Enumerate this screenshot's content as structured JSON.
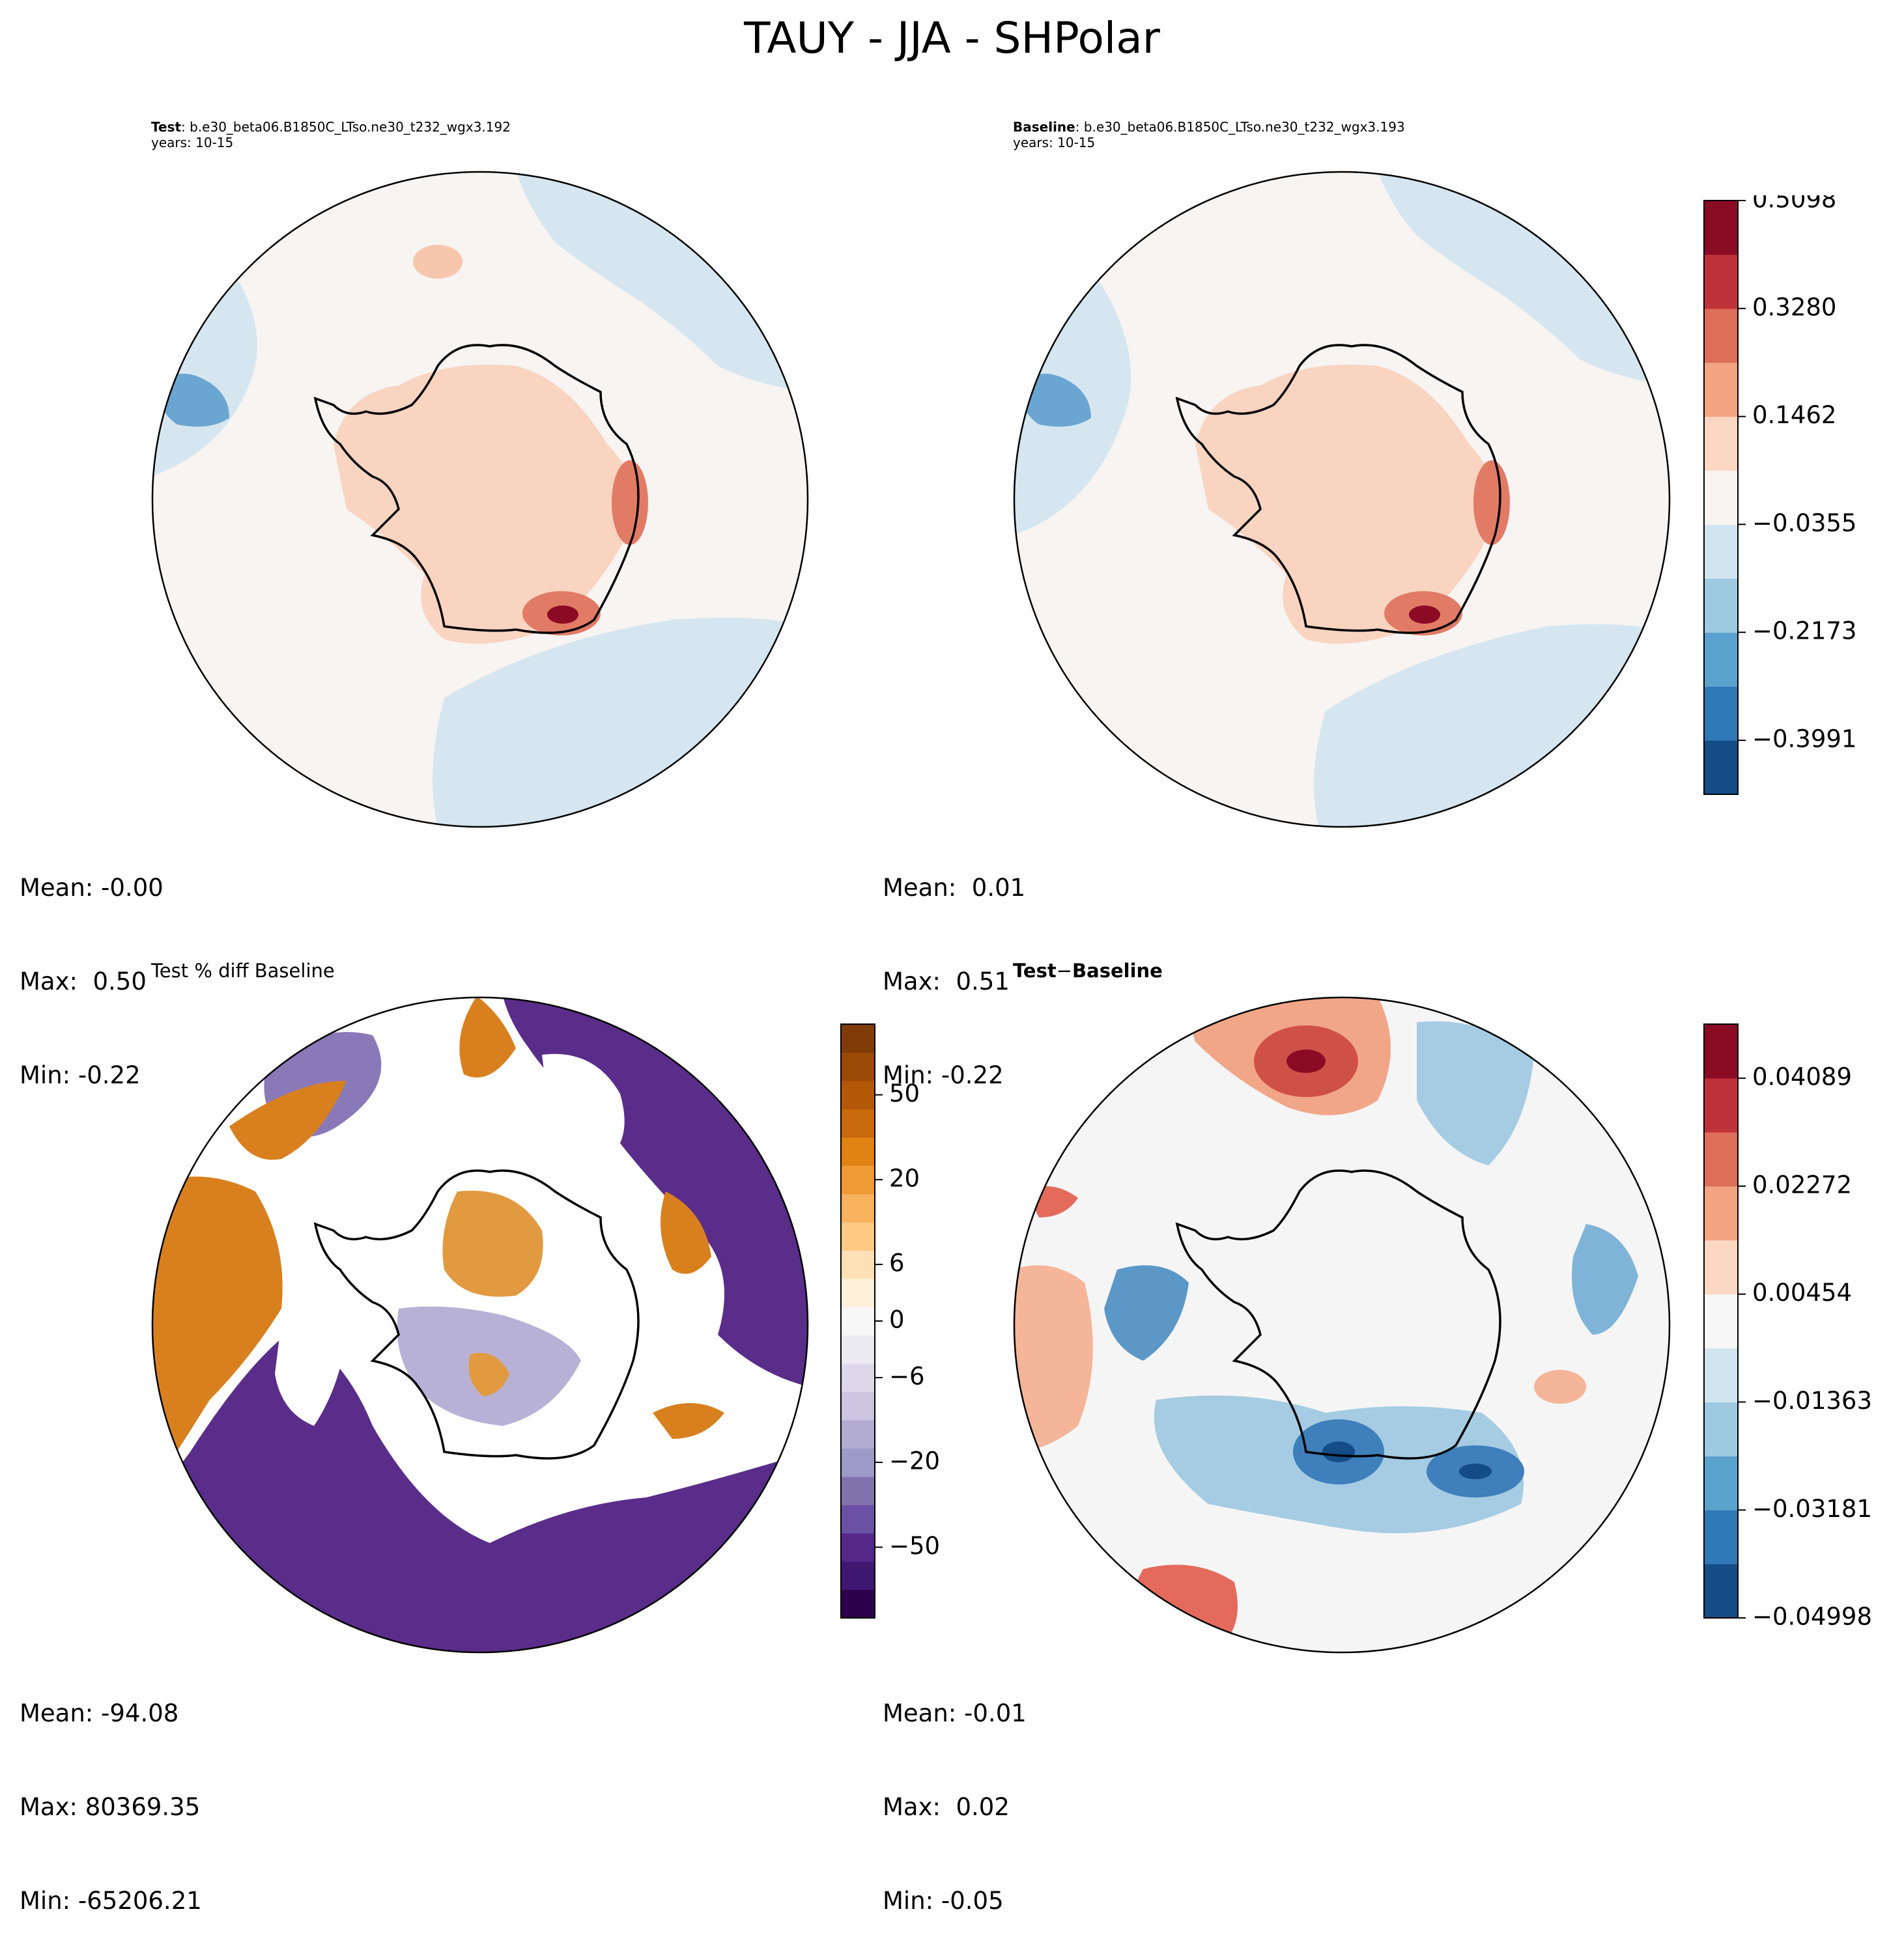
{
  "figure": {
    "title": "TAUY - JJA - SHPolar"
  },
  "chart_data": [
    {
      "type": "heatmap",
      "projection": "south-polar-stereographic",
      "panel": "test",
      "title_bold": "Test",
      "title_rest": ": b.e30_beta06.B1850C_LTso.ne30_t232_wgx3.192",
      "years": "years: 10-15",
      "stats": {
        "mean": "Mean: -0.00",
        "max": "Max:  0.50",
        "min": "Min: -0.22"
      }
    },
    {
      "type": "heatmap",
      "projection": "south-polar-stereographic",
      "panel": "baseline",
      "title_bold": "Baseline",
      "title_rest": ": b.e30_beta06.B1850C_LTso.ne30_t232_wgx3.193",
      "years": "years: 10-15",
      "stats": {
        "mean": "Mean:  0.01",
        "max": "Max:  0.51",
        "min": "Min: -0.22"
      },
      "colorbar": {
        "ticks": [
          "0.5098",
          "0.3280",
          "0.1462",
          "−0.0355",
          "−0.2173",
          "−0.3991"
        ],
        "tick_values": [
          0.5098,
          0.328,
          0.1462,
          -0.0355,
          -0.2173,
          -0.3991
        ],
        "range": [
          -0.49,
          0.5098
        ],
        "colors": [
          "#134c87",
          "#2e78b5",
          "#5ba3cf",
          "#9ecae1",
          "#d1e5f0",
          "#f7f4f2",
          "#fbd7c4",
          "#f3a583",
          "#dd6e5a",
          "#c0323a",
          "#8b0a24"
        ]
      }
    },
    {
      "type": "heatmap",
      "projection": "south-polar-stereographic",
      "panel": "percent-diff",
      "title": "Test % diff Baseline",
      "stats": {
        "mean": "Mean: -94.08",
        "max": "Max: 80369.35",
        "min": "Min: -65206.21"
      },
      "colorbar": {
        "ticks": [
          "50",
          "20",
          "6",
          "0",
          "−6",
          "−20",
          "−50"
        ],
        "tick_values": [
          50,
          20,
          6,
          0,
          -6,
          -20,
          -50
        ],
        "colors": [
          "#2d004b",
          "#3f1670",
          "#542788",
          "#6a51a3",
          "#8073ac",
          "#9e9ac8",
          "#b2abd2",
          "#cbc5e2",
          "#dcd8ea",
          "#ebe9f2",
          "#f7f7f7",
          "#fdf0d9",
          "#fee0b6",
          "#fdc985",
          "#f8b25e",
          "#f09a35",
          "#e08214",
          "#c86a0b",
          "#b35806",
          "#9a4a05",
          "#7f3b08"
        ]
      }
    },
    {
      "type": "heatmap",
      "projection": "south-polar-stereographic",
      "panel": "difference",
      "title_a": "Test",
      "title_op": "−",
      "title_b": "Baseline",
      "stats": {
        "mean": "Mean: -0.01",
        "max": "Max:  0.02",
        "min": "Min: -0.05"
      },
      "colorbar": {
        "ticks": [
          "0.04089",
          "0.02272",
          "0.00454",
          "−0.01363",
          "−0.03181",
          "−0.04998"
        ],
        "tick_values": [
          0.04089,
          0.02272,
          0.00454,
          -0.01363,
          -0.03181,
          -0.04998
        ],
        "range": [
          -0.04998,
          0.05
        ],
        "colors": [
          "#134c87",
          "#2e78b5",
          "#5ba3cf",
          "#9ecae1",
          "#d1e5f0",
          "#f7f7f7",
          "#fbd7c4",
          "#f3a583",
          "#dd6e5a",
          "#c0323a",
          "#8b0a24"
        ]
      }
    }
  ]
}
